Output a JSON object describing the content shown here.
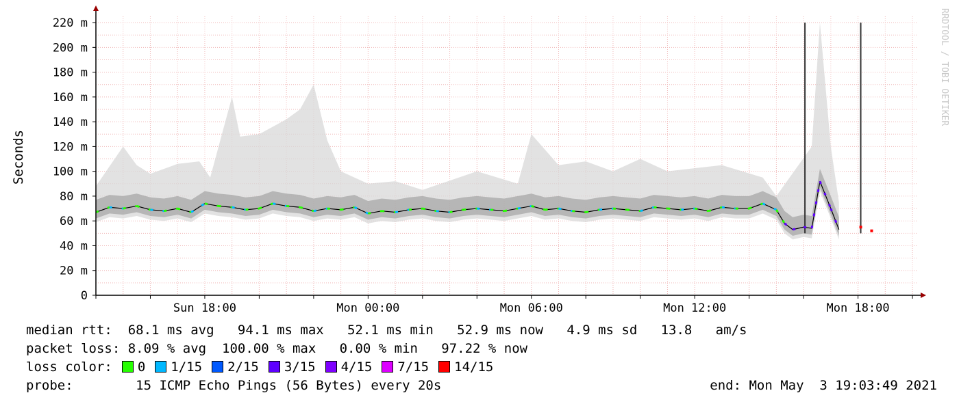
{
  "chart_data": {
    "type": "area",
    "ylabel": "Seconds",
    "watermark": "RRDTOOL / TOBI OETIKER",
    "y_tick_labels": [
      "0",
      "20 m",
      "40 m",
      "60 m",
      "80 m",
      "100 m",
      "120 m",
      "140 m",
      "160 m",
      "180 m",
      "200 m",
      "220 m"
    ],
    "y_tick_values_ms": [
      0,
      20,
      40,
      60,
      80,
      100,
      120,
      140,
      160,
      180,
      200,
      220
    ],
    "ylim_ms": [
      0,
      225
    ],
    "x_tick_labels": [
      "Sun 18:00",
      "Mon 00:00",
      "Mon 06:00",
      "Mon 12:00",
      "Mon 18:00"
    ],
    "x_tick_hours": [
      4,
      10,
      16,
      22,
      28
    ],
    "x_range_hours": [
      0,
      30.2
    ],
    "grid": true,
    "series": [
      {
        "name": "median rtt",
        "x_hours": [
          0.0,
          0.5,
          1.0,
          1.5,
          2.0,
          2.5,
          3.0,
          3.5,
          4.0,
          4.5,
          5.0,
          5.5,
          6.0,
          6.5,
          7.0,
          7.5,
          8.0,
          8.5,
          9.0,
          9.5,
          10.0,
          10.5,
          11.0,
          11.5,
          12.0,
          12.5,
          13.0,
          13.5,
          14.0,
          14.5,
          15.0,
          15.5,
          16.0,
          16.5,
          17.0,
          17.5,
          18.0,
          18.5,
          19.0,
          19.5,
          20.0,
          20.5,
          21.0,
          21.5,
          22.0,
          22.5,
          23.0,
          23.5,
          24.0,
          24.5,
          25.0,
          25.3,
          25.6,
          26.0,
          26.3,
          26.6,
          27.0,
          27.3
        ],
        "values_ms": [
          67,
          71,
          70,
          72,
          69,
          68,
          70,
          67,
          74,
          72,
          71,
          69,
          70,
          74,
          72,
          71,
          68,
          70,
          69,
          71,
          66,
          68,
          67,
          69,
          70,
          68,
          67,
          69,
          70,
          69,
          68,
          70,
          72,
          69,
          70,
          68,
          67,
          69,
          70,
          69,
          68,
          71,
          70,
          69,
          70,
          68,
          71,
          70,
          70,
          74,
          69,
          58,
          53,
          55,
          54,
          92,
          70,
          53
        ]
      },
      {
        "name": "smoke_upper_ms",
        "x_hours": [
          0.0,
          1.0,
          1.5,
          2.0,
          3.0,
          3.8,
          4.2,
          5.0,
          5.3,
          6.0,
          7.0,
          7.5,
          8.0,
          8.5,
          9.0,
          9.5,
          10.0,
          11.0,
          12.0,
          14.0,
          15.5,
          16.0,
          17.0,
          18.0,
          19.0,
          20.0,
          21.0,
          23.0,
          24.5,
          25.0,
          26.3,
          26.6,
          27.0,
          27.3
        ],
        "values_ms": [
          88,
          120,
          105,
          98,
          106,
          108,
          95,
          160,
          128,
          130,
          142,
          150,
          170,
          125,
          100,
          95,
          90,
          92,
          85,
          100,
          90,
          130,
          105,
          108,
          100,
          110,
          100,
          105,
          95,
          80,
          120,
          220,
          120,
          75
        ]
      }
    ],
    "spikes_ms": [
      {
        "x_hours": 26.05,
        "value_ms": 220
      },
      {
        "x_hours": 28.1,
        "value_ms": 220
      }
    ],
    "tail_points_ms": [
      {
        "x_hours": 28.1,
        "value_ms": 55
      },
      {
        "x_hours": 28.5,
        "value_ms": 52
      }
    ],
    "loss_colors": [
      {
        "label": "0",
        "color": "#26ff00"
      },
      {
        "label": "1/15",
        "color": "#00b8ff"
      },
      {
        "label": "2/15",
        "color": "#0059ff"
      },
      {
        "label": "3/15",
        "color": "#5e00ff"
      },
      {
        "label": "4/15",
        "color": "#7e00ff"
      },
      {
        "label": "7/15",
        "color": "#dd00ff"
      },
      {
        "label": "14/15",
        "color": "#ff0000"
      }
    ]
  },
  "legend": {
    "rtt_label": "median rtt:",
    "rtt_values": "68.1 ms avg   94.1 ms max   52.1 ms min   52.9 ms now   4.9 ms sd   13.8   am/s",
    "loss_label": "packet loss:",
    "loss_values": "8.09 % avg  100.00 % max   0.00 % min   97.22 % now",
    "color_label": "loss color:",
    "probe_label": "probe:",
    "probe_value": "15 ICMP Echo Pings (56 Bytes) every 20s",
    "end_value": "end: Mon May  3 19:03:49 2021"
  }
}
